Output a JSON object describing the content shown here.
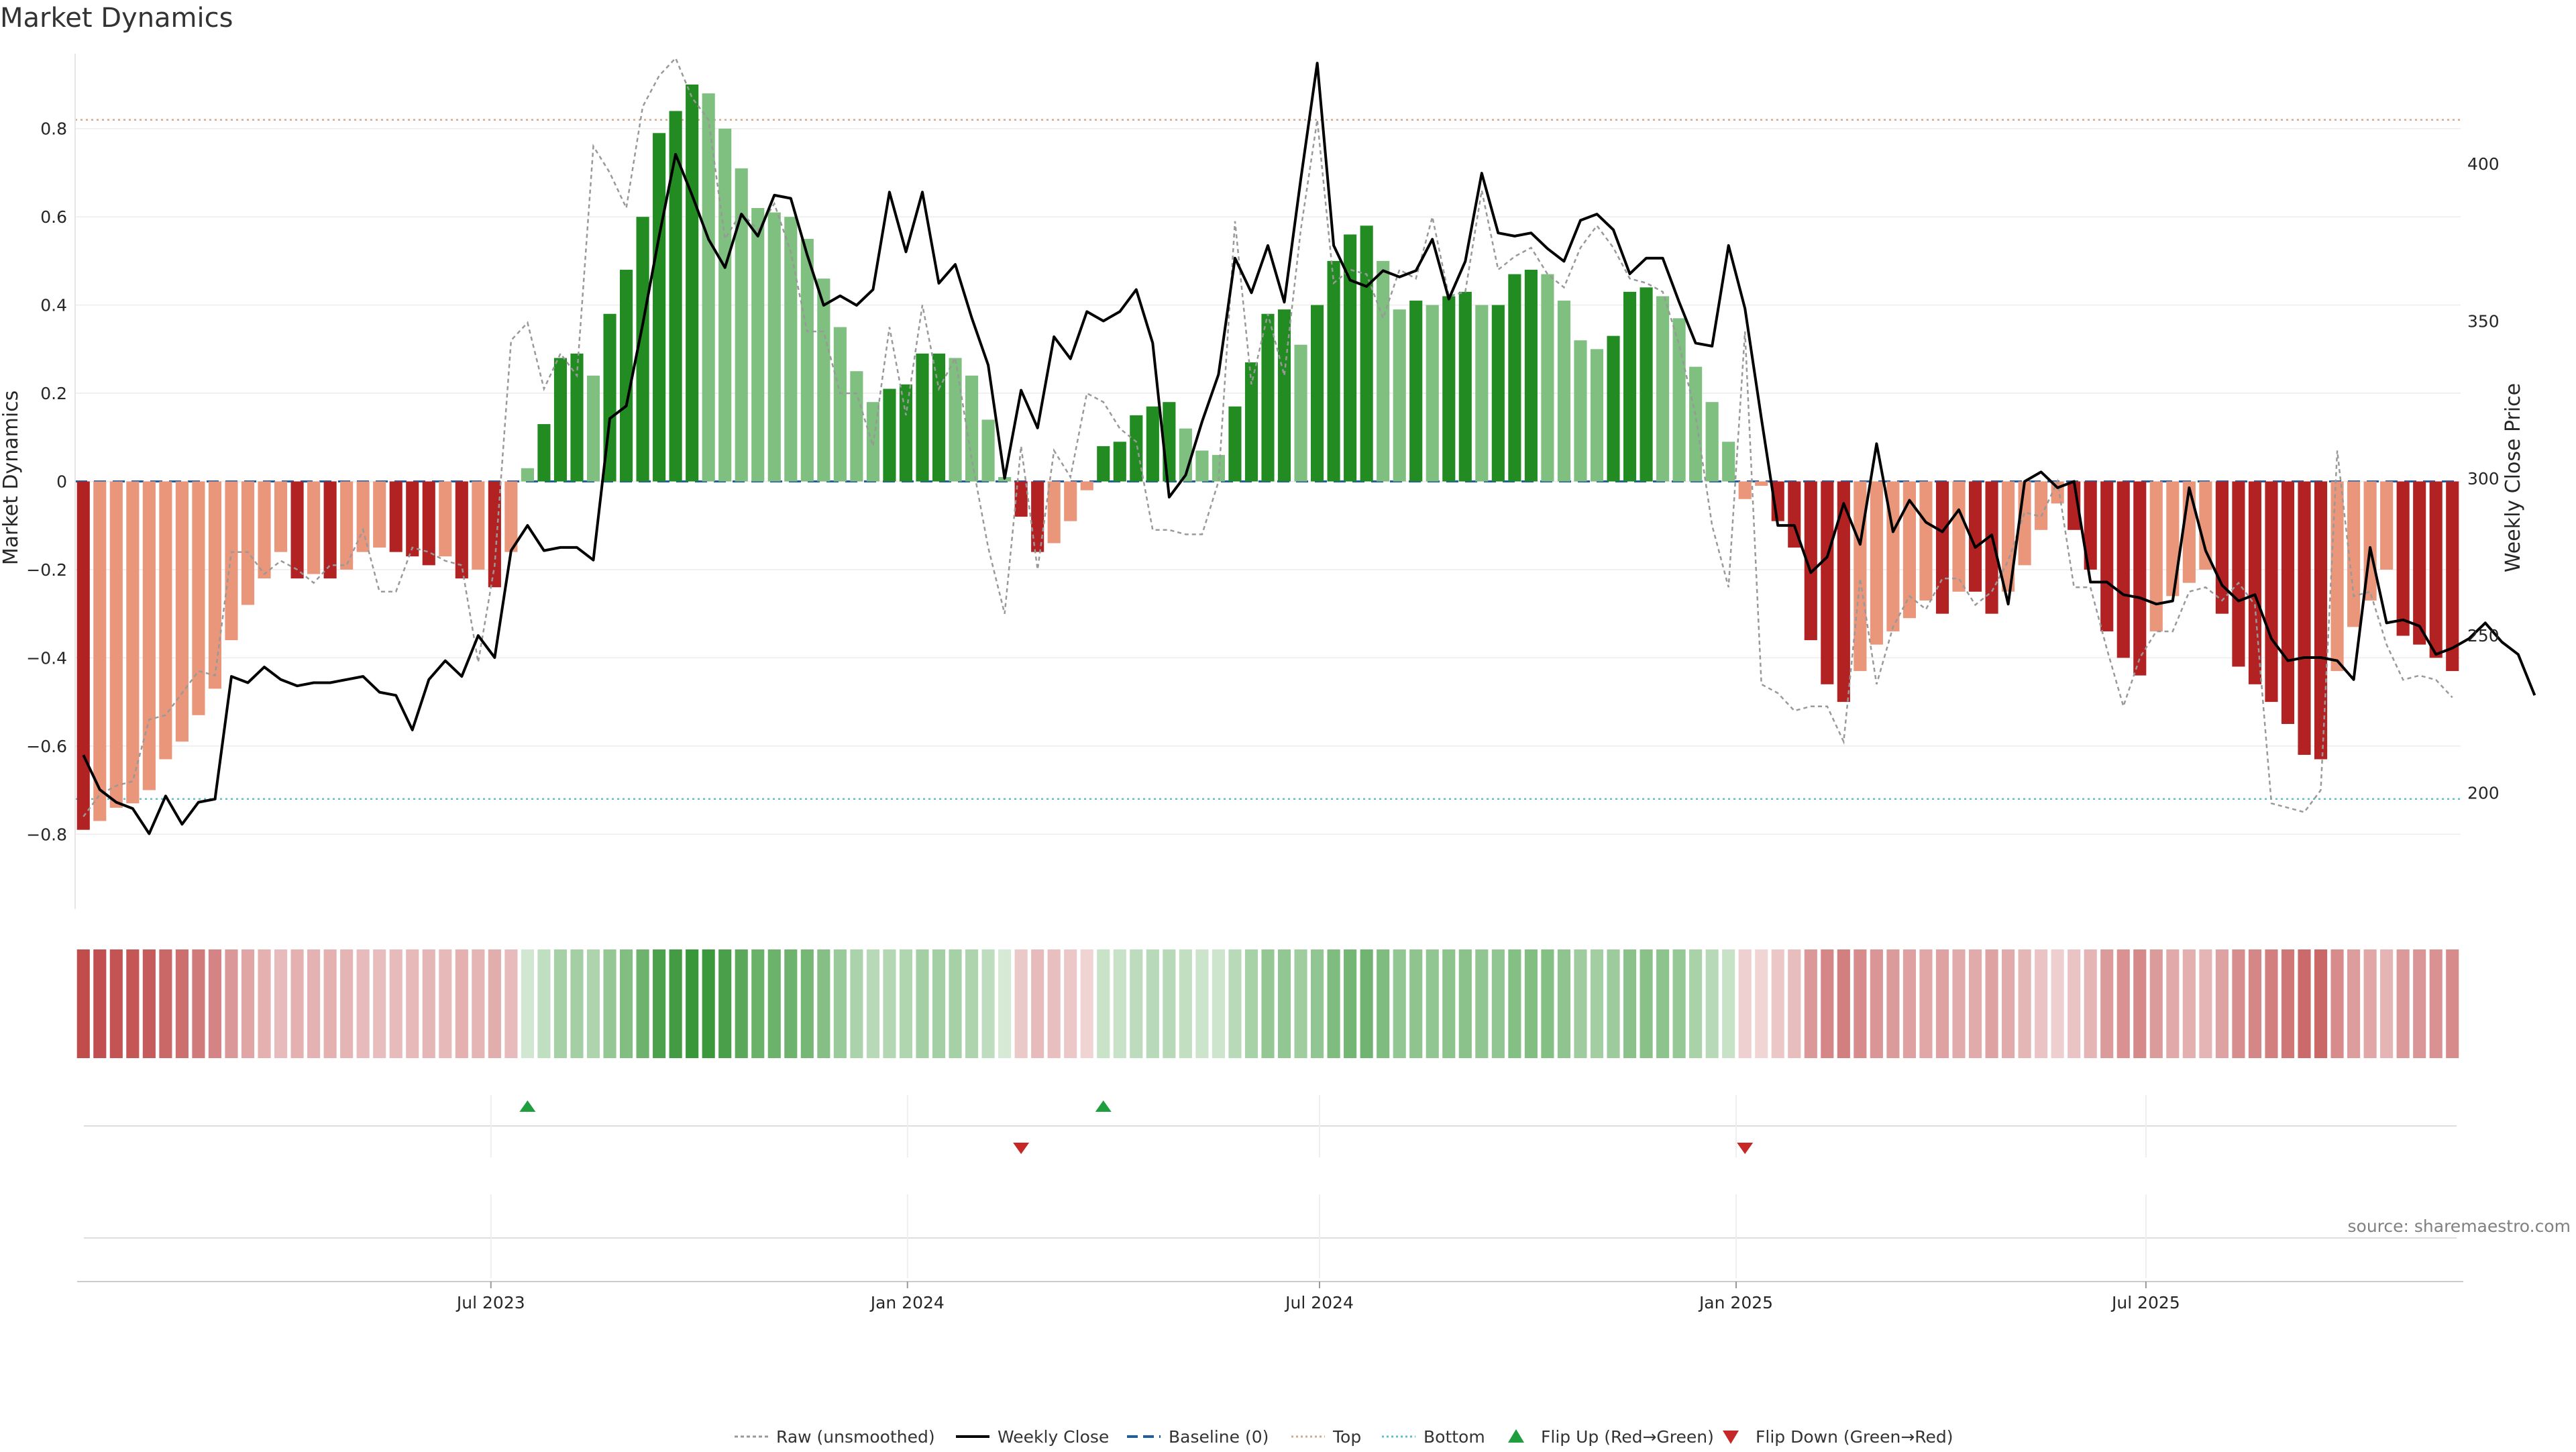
{
  "chart_data": {
    "type": "bar",
    "title": "Market Dynamics",
    "ylabel": "Market Dynamics",
    "y2label": "Weekly Close Price",
    "ylim": [
      -0.97,
      0.97
    ],
    "y2lim": [
      163,
      435
    ],
    "y_ticks": [
      -0.8,
      -0.6,
      -0.4,
      -0.2,
      0,
      0.2,
      0.4,
      0.6,
      0.8
    ],
    "y_tick_labels": [
      "−0.8",
      "−0.6",
      "−0.4",
      "−0.2",
      "0",
      "0.2",
      "0.4",
      "0.6",
      "0.8"
    ],
    "y2_ticks": [
      200,
      250,
      300,
      350,
      400
    ],
    "y2_tick_labels": [
      "200",
      "250",
      "300",
      "350",
      "400"
    ],
    "x_start": "2023-01-02",
    "x_end": "2025-11-17",
    "x_ticks": [
      "2023-07-01",
      "2024-01-01",
      "2024-07-01",
      "2025-01-01",
      "2025-07-01"
    ],
    "x_tick_labels": [
      "Jul 2023",
      "Jan 2024",
      "Jul 2024",
      "Jan 2025",
      "Jul 2025"
    ],
    "top_threshold": 0.82,
    "bottom_threshold": -0.72,
    "grid": true,
    "legend_position": "bottom-center",
    "colors": {
      "strong_down": "#b22222",
      "weak_down": "#e9967a",
      "strong_up": "#228b22",
      "weak_up": "#7fbf7f",
      "price": "#000000",
      "raw": "#999999",
      "baseline": "#1f5f9f",
      "top": "#d2a98a",
      "bottom": "#5bc0c8",
      "flip_up": "#1e9e3e",
      "flip_down": "#c62828"
    },
    "bars": [
      -0.79,
      -0.77,
      -0.74,
      -0.73,
      -0.7,
      -0.63,
      -0.59,
      -0.53,
      -0.47,
      -0.36,
      -0.28,
      -0.22,
      -0.16,
      -0.22,
      -0.21,
      -0.22,
      -0.2,
      -0.16,
      -0.15,
      -0.16,
      -0.17,
      -0.19,
      -0.17,
      -0.22,
      -0.2,
      -0.24,
      -0.16,
      0.03,
      0.13,
      0.28,
      0.29,
      0.24,
      0.38,
      0.48,
      0.6,
      0.79,
      0.84,
      0.9,
      0.88,
      0.8,
      0.71,
      0.62,
      0.61,
      0.6,
      0.55,
      0.46,
      0.35,
      0.25,
      0.18,
      0.21,
      0.22,
      0.29,
      0.29,
      0.28,
      0.24,
      0.14,
      0.01,
      -0.08,
      -0.16,
      -0.14,
      -0.09,
      -0.02,
      0.08,
      0.09,
      0.15,
      0.17,
      0.18,
      0.12,
      0.07,
      0.06,
      0.17,
      0.27,
      0.38,
      0.39,
      0.31,
      0.4,
      0.5,
      0.56,
      0.58,
      0.5,
      0.39,
      0.41,
      0.4,
      0.42,
      0.43,
      0.4,
      0.4,
      0.47,
      0.48,
      0.47,
      0.41,
      0.32,
      0.3,
      0.33,
      0.43,
      0.44,
      0.42,
      0.37,
      0.26,
      0.18,
      0.09,
      -0.04,
      -0.01,
      -0.09,
      -0.15,
      -0.36,
      -0.46,
      -0.5,
      -0.43,
      -0.37,
      -0.34,
      -0.31,
      -0.27,
      -0.3,
      -0.25,
      -0.25,
      -0.3,
      -0.25,
      -0.19,
      -0.11,
      -0.05,
      -0.11,
      -0.2,
      -0.34,
      -0.4,
      -0.44,
      -0.34,
      -0.26,
      -0.23,
      -0.2,
      -0.3,
      -0.42,
      -0.46,
      -0.5,
      -0.55,
      -0.62,
      -0.63,
      -0.43,
      -0.33,
      -0.27,
      -0.2,
      -0.35,
      -0.37,
      -0.4,
      -0.43
    ],
    "price": [
      212,
      201,
      197,
      195,
      187,
      199,
      190,
      197,
      198,
      237,
      235,
      240,
      236,
      234,
      235,
      235,
      236,
      237,
      232,
      231,
      220,
      236,
      242,
      237,
      250,
      243,
      277,
      285,
      277,
      278,
      278,
      274,
      319,
      323,
      349,
      377,
      403,
      390,
      376,
      367,
      384,
      377,
      390,
      389,
      371,
      355,
      358,
      355,
      360,
      391,
      372,
      391,
      362,
      368,
      351,
      336,
      300,
      328,
      316,
      345,
      338,
      353,
      350,
      353,
      360,
      343,
      294,
      301,
      318,
      333,
      370,
      359,
      374,
      356,
      395,
      432,
      374,
      363,
      361,
      366,
      364,
      366,
      376,
      357,
      369,
      397,
      378,
      377,
      378,
      373,
      369,
      382,
      384,
      379,
      365,
      370,
      370,
      356,
      343,
      342,
      374,
      354,
      319,
      285,
      285,
      270,
      275,
      292,
      279,
      311,
      283,
      293,
      286,
      283,
      290,
      278,
      282,
      260,
      299,
      302,
      297,
      299,
      267,
      267,
      263,
      262,
      260,
      261,
      297,
      277,
      266,
      261,
      263,
      249,
      242,
      243,
      243,
      242,
      236,
      278,
      254,
      255,
      253,
      244,
      246,
      249,
      254,
      248,
      244,
      231
    ],
    "raw": [
      -0.76,
      -0.71,
      -0.69,
      -0.68,
      -0.54,
      -0.53,
      -0.48,
      -0.43,
      -0.44,
      -0.16,
      -0.16,
      -0.21,
      -0.18,
      -0.2,
      -0.23,
      -0.19,
      -0.19,
      -0.11,
      -0.25,
      -0.25,
      -0.15,
      -0.16,
      -0.18,
      -0.19,
      -0.41,
      -0.19,
      0.32,
      0.36,
      0.21,
      0.29,
      0.24,
      0.76,
      0.7,
      0.62,
      0.85,
      0.92,
      0.96,
      0.87,
      0.82,
      0.55,
      0.61,
      0.57,
      0.63,
      0.52,
      0.34,
      0.34,
      0.2,
      0.2,
      0.08,
      0.35,
      0.15,
      0.4,
      0.21,
      0.28,
      0.05,
      -0.15,
      -0.3,
      0.08,
      -0.2,
      0.07,
      0.01,
      0.2,
      0.18,
      0.12,
      0.09,
      -0.11,
      -0.11,
      -0.12,
      -0.12,
      0.0,
      0.59,
      0.22,
      0.38,
      0.24,
      0.57,
      0.82,
      0.45,
      0.48,
      0.47,
      0.37,
      0.48,
      0.46,
      0.6,
      0.42,
      0.43,
      0.66,
      0.48,
      0.51,
      0.53,
      0.47,
      0.44,
      0.53,
      0.58,
      0.53,
      0.46,
      0.45,
      0.43,
      0.31,
      0.15,
      -0.1,
      -0.24,
      0.34,
      -0.46,
      -0.48,
      -0.52,
      -0.51,
      -0.51,
      -0.59,
      -0.22,
      -0.46,
      -0.33,
      -0.26,
      -0.29,
      -0.22,
      -0.22,
      -0.28,
      -0.25,
      -0.18,
      -0.07,
      -0.08,
      0.0,
      -0.24,
      -0.24,
      -0.38,
      -0.51,
      -0.4,
      -0.34,
      -0.34,
      -0.25,
      -0.24,
      -0.27,
      -0.23,
      -0.28,
      -0.73,
      -0.74,
      -0.75,
      -0.7,
      0.07,
      -0.26,
      -0.25,
      -0.37,
      -0.45,
      -0.44,
      -0.45,
      -0.49
    ],
    "flips_up_index": [
      27,
      62
    ],
    "flips_down_index": [
      57,
      101
    ],
    "legend": [
      {
        "key": "raw",
        "label": "Raw (unsmoothed)"
      },
      {
        "key": "price",
        "label": "Weekly Close"
      },
      {
        "key": "baseline",
        "label": "Baseline (0)"
      },
      {
        "key": "top",
        "label": "Top"
      },
      {
        "key": "bottom",
        "label": "Bottom"
      },
      {
        "key": "flip_up",
        "label": "Flip Up (Red→Green)"
      },
      {
        "key": "flip_down",
        "label": "Flip Down (Green→Red)"
      }
    ],
    "source": "source: sharemaestro.com"
  }
}
